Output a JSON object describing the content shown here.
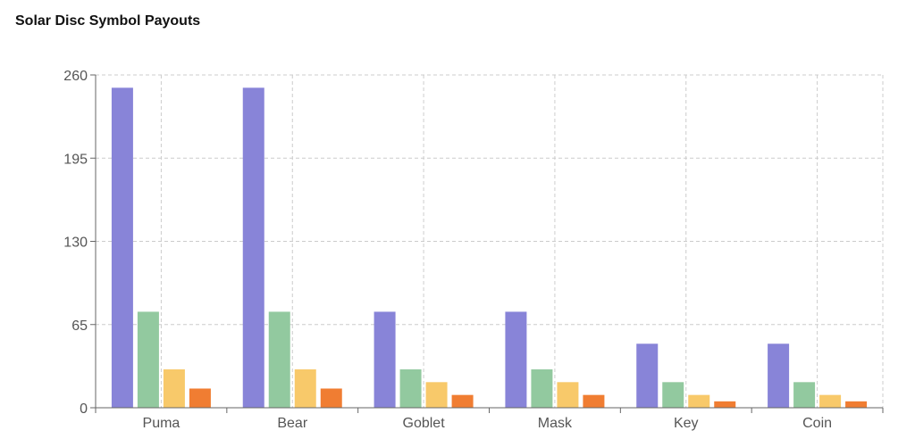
{
  "chart_data": {
    "type": "bar",
    "title": "Solar Disc Symbol Payouts",
    "xlabel": "",
    "ylabel": "",
    "categories": [
      "Puma",
      "Bear",
      "Goblet",
      "Mask",
      "Key",
      "Coin"
    ],
    "series": [
      {
        "color": "#8884d8",
        "values": [
          250,
          250,
          75,
          75,
          50,
          50
        ]
      },
      {
        "color": "#92c99f",
        "values": [
          75,
          75,
          30,
          30,
          20,
          20
        ]
      },
      {
        "color": "#f8c96a",
        "values": [
          30,
          30,
          20,
          20,
          10,
          10
        ]
      },
      {
        "color": "#f07d32",
        "values": [
          15,
          15,
          10,
          10,
          5,
          5
        ]
      }
    ],
    "ylim": [
      0,
      260
    ],
    "yticks": [
      0,
      65,
      130,
      195,
      260
    ],
    "grid": true,
    "legend": "none"
  }
}
